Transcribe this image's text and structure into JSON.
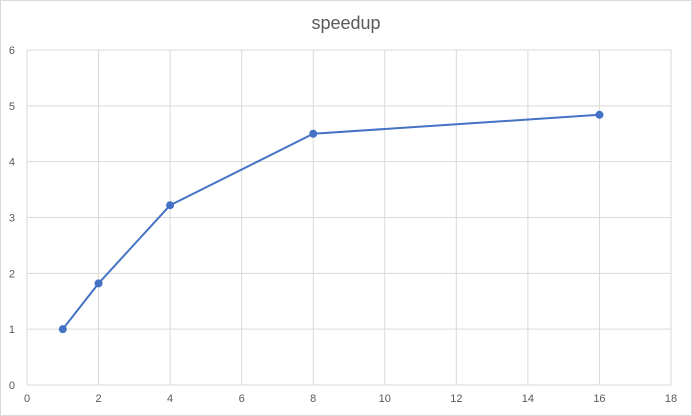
{
  "chart_data": {
    "type": "scatter",
    "title": "speedup",
    "xlabel": "",
    "ylabel": "",
    "xlim": [
      0,
      18
    ],
    "ylim": [
      0,
      6
    ],
    "x_ticks": [
      0,
      2,
      4,
      6,
      8,
      10,
      12,
      14,
      16,
      18
    ],
    "y_ticks": [
      0,
      1,
      2,
      3,
      4,
      5,
      6
    ],
    "grid": true,
    "legend": "none",
    "series": [
      {
        "color": "#4472c4",
        "lines": true,
        "markers": true,
        "x": [
          1,
          2,
          4,
          8,
          16
        ],
        "y": [
          1,
          1.82,
          3.22,
          4.5,
          4.84
        ]
      }
    ]
  }
}
